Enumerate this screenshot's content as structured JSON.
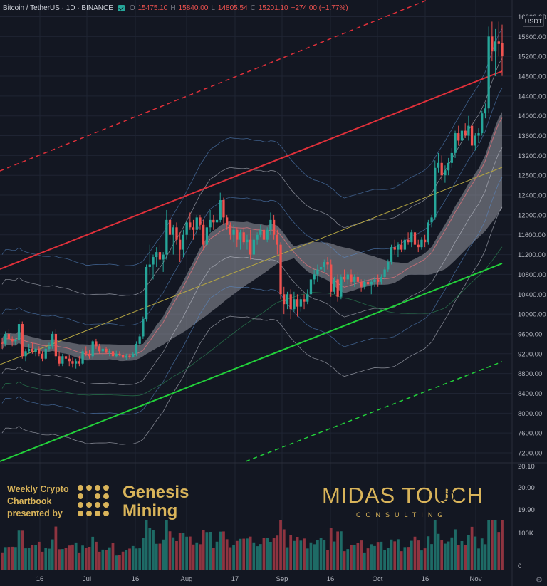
{
  "header": {
    "symbol": "Bitcoin / TetherUS · 1D · BINANCE",
    "open_label": "O",
    "open": "15475.10",
    "high_label": "H",
    "high": "15840.00",
    "low_label": "L",
    "low": "14805.54",
    "close_label": "C",
    "close": "15201.10",
    "change": "−274.00 (−1.77%)"
  },
  "currency": "USDT",
  "colors": {
    "bg": "#131722",
    "up": "#26a69a",
    "down": "#ef5350",
    "vol_up": "#1e6b66",
    "vol_down": "#8e3440",
    "gold": "#d9b45a",
    "grid": "#1f2433"
  },
  "promo": {
    "lines": [
      "Weekly Crypto",
      "Chartbook",
      "presented by"
    ],
    "brand_line1": "Genesis",
    "brand_line2": "Mining"
  },
  "midas": {
    "title": "MIDAS TOUCH",
    "subtitle": "CONSULTING"
  },
  "chart_data": {
    "type": "candlestick",
    "y_axis_labels": [
      "16000.00",
      "15600.00",
      "15200.00",
      "14800.00",
      "14400.00",
      "14000.00",
      "13600.00",
      "13200.00",
      "12800.00",
      "12400.00",
      "12000.00",
      "11600.00",
      "11200.00",
      "10800.00",
      "10400.00",
      "10000.00",
      "9600.00",
      "9200.00",
      "8800.00",
      "8400.00",
      "8000.00",
      "7600.00",
      "7200.00"
    ],
    "ylim": [
      7000,
      16050
    ],
    "x_axis_labels": [
      "16",
      "Jul",
      "16",
      "Aug",
      "17",
      "Sep",
      "16",
      "Oct",
      "16",
      "Nov"
    ],
    "volume_axis_labels": [
      "20.10",
      "20.00",
      "19.90",
      "100K",
      "0"
    ],
    "candles": [
      [
        9420,
        9520,
        9300,
        9400
      ],
      [
        9400,
        9650,
        9350,
        9600
      ],
      [
        9600,
        9700,
        9450,
        9500
      ],
      [
        9500,
        9550,
        9350,
        9450
      ],
      [
        9450,
        9520,
        9380,
        9480
      ],
      [
        9480,
        9900,
        9400,
        9800
      ],
      [
        9800,
        9850,
        9100,
        9150
      ],
      [
        9150,
        9300,
        9050,
        9250
      ],
      [
        9250,
        9400,
        9200,
        9300
      ],
      [
        9300,
        9420,
        9200,
        9230
      ],
      [
        9230,
        9320,
        9150,
        9300
      ],
      [
        9300,
        9350,
        9150,
        9200
      ],
      [
        9200,
        9250,
        9050,
        9100
      ],
      [
        9100,
        9320,
        9080,
        9300
      ],
      [
        9300,
        9420,
        9250,
        9350
      ],
      [
        9350,
        9650,
        9300,
        9600
      ],
      [
        9600,
        9700,
        9080,
        9150
      ],
      [
        9150,
        9250,
        8950,
        9000
      ],
      [
        9000,
        9200,
        8950,
        9150
      ],
      [
        9150,
        9280,
        9050,
        9100
      ],
      [
        9100,
        9180,
        8950,
        9050
      ],
      [
        9050,
        9120,
        8920,
        9000
      ],
      [
        9000,
        9100,
        8900,
        9050
      ],
      [
        9050,
        9150,
        8950,
        9000
      ],
      [
        9000,
        9300,
        8980,
        9250
      ],
      [
        9250,
        9350,
        9150,
        9200
      ],
      [
        9200,
        9280,
        9100,
        9150
      ],
      [
        9150,
        9480,
        9100,
        9450
      ],
      [
        9450,
        9500,
        9300,
        9350
      ],
      [
        9350,
        9400,
        9200,
        9250
      ],
      [
        9250,
        9350,
        9150,
        9300
      ],
      [
        9300,
        9330,
        9200,
        9220
      ],
      [
        9220,
        9300,
        9150,
        9250
      ],
      [
        9250,
        9300,
        9100,
        9150
      ],
      [
        9150,
        9260,
        9120,
        9200
      ],
      [
        9200,
        9250,
        9150,
        9180
      ],
      [
        9180,
        9230,
        9100,
        9120
      ],
      [
        9120,
        9200,
        9080,
        9160
      ],
      [
        9160,
        9200,
        9100,
        9140
      ],
      [
        9140,
        9230,
        9120,
        9200
      ],
      [
        9200,
        9450,
        9150,
        9400
      ],
      [
        9400,
        9600,
        9350,
        9550
      ],
      [
        9550,
        9950,
        9500,
        9900
      ],
      [
        9900,
        11000,
        9850,
        10950
      ],
      [
        10950,
        11400,
        10800,
        11000
      ],
      [
        11000,
        11200,
        10700,
        11150
      ],
      [
        11150,
        11350,
        10950,
        11250
      ],
      [
        11250,
        11400,
        11050,
        11100
      ],
      [
        11100,
        11250,
        10850,
        11200
      ],
      [
        11200,
        12100,
        11100,
        11900
      ],
      [
        11900,
        12000,
        11500,
        11600
      ],
      [
        11600,
        11800,
        11200,
        11750
      ],
      [
        11750,
        11850,
        11400,
        11500
      ],
      [
        11500,
        11650,
        11050,
        11300
      ],
      [
        11300,
        11700,
        11150,
        11600
      ],
      [
        11600,
        11900,
        11500,
        11850
      ],
      [
        11850,
        12050,
        11700,
        11750
      ],
      [
        11750,
        11900,
        11500,
        11700
      ],
      [
        11700,
        12000,
        11600,
        11950
      ],
      [
        11950,
        12000,
        11700,
        11800
      ],
      [
        11800,
        11900,
        11300,
        11400
      ],
      [
        11400,
        11800,
        11300,
        11750
      ],
      [
        11750,
        12100,
        11650,
        11900
      ],
      [
        11900,
        12000,
        11700,
        11850
      ],
      [
        11850,
        12000,
        11600,
        11900
      ],
      [
        11900,
        12450,
        11850,
        12300
      ],
      [
        12300,
        12350,
        11800,
        11950
      ],
      [
        11950,
        12000,
        11700,
        11800
      ],
      [
        11800,
        11850,
        11500,
        11600
      ],
      [
        11600,
        11800,
        11450,
        11700
      ],
      [
        11700,
        11750,
        11350,
        11500
      ],
      [
        11500,
        11700,
        11300,
        11650
      ],
      [
        11650,
        11750,
        11400,
        11450
      ],
      [
        11450,
        11600,
        11300,
        11500
      ],
      [
        11500,
        11700,
        11100,
        11200
      ],
      [
        11200,
        11550,
        11150,
        11500
      ],
      [
        11500,
        11650,
        11400,
        11600
      ],
      [
        11600,
        11800,
        11550,
        11700
      ],
      [
        11700,
        11750,
        11400,
        11500
      ],
      [
        11500,
        11750,
        11450,
        11700
      ],
      [
        11700,
        12050,
        11600,
        11900
      ],
      [
        11900,
        12000,
        11500,
        11600
      ],
      [
        11600,
        11700,
        11200,
        11400
      ],
      [
        11400,
        11450,
        10300,
        10400
      ],
      [
        10400,
        10550,
        10000,
        10200
      ],
      [
        10200,
        10450,
        10100,
        10400
      ],
      [
        10400,
        10500,
        9900,
        10100
      ],
      [
        10100,
        10450,
        10050,
        10300
      ],
      [
        10300,
        10400,
        9950,
        10150
      ],
      [
        10150,
        10350,
        10050,
        10300
      ],
      [
        10300,
        10400,
        10100,
        10250
      ],
      [
        10250,
        10500,
        10200,
        10400
      ],
      [
        10400,
        10750,
        10350,
        10700
      ],
      [
        10700,
        10900,
        10600,
        10800
      ],
      [
        10800,
        11000,
        10650,
        10900
      ],
      [
        10900,
        11050,
        10700,
        10950
      ],
      [
        10950,
        11100,
        10850,
        11050
      ],
      [
        11050,
        11150,
        10900,
        11000
      ],
      [
        11000,
        11100,
        10350,
        10450
      ],
      [
        10450,
        10750,
        10400,
        10700
      ],
      [
        10700,
        10800,
        10250,
        10350
      ],
      [
        10350,
        10800,
        10300,
        10750
      ],
      [
        10750,
        10900,
        10650,
        10700
      ],
      [
        10700,
        10850,
        10600,
        10800
      ],
      [
        10800,
        10900,
        10600,
        10650
      ],
      [
        10650,
        10800,
        10550,
        10750
      ],
      [
        10750,
        10850,
        10600,
        10650
      ],
      [
        10650,
        10700,
        10450,
        10550
      ],
      [
        10550,
        10700,
        10500,
        10650
      ],
      [
        10650,
        10750,
        10500,
        10600
      ],
      [
        10600,
        10700,
        10400,
        10650
      ],
      [
        10650,
        10750,
        10550,
        10700
      ],
      [
        10700,
        10800,
        10550,
        10650
      ],
      [
        10650,
        10800,
        10600,
        10750
      ],
      [
        10750,
        10950,
        10700,
        10900
      ],
      [
        10900,
        11100,
        10850,
        11050
      ],
      [
        11050,
        11400,
        11000,
        11350
      ],
      [
        11350,
        11500,
        11200,
        11300
      ],
      [
        11300,
        11450,
        11150,
        11400
      ],
      [
        11400,
        11500,
        11250,
        11300
      ],
      [
        11300,
        11550,
        11250,
        11500
      ],
      [
        11500,
        11650,
        11400,
        11450
      ],
      [
        11450,
        11700,
        11350,
        11650
      ],
      [
        11650,
        11700,
        11300,
        11400
      ],
      [
        11400,
        11500,
        11250,
        11350
      ],
      [
        11350,
        11550,
        11300,
        11500
      ],
      [
        11500,
        11600,
        11350,
        11450
      ],
      [
        11450,
        11900,
        11400,
        11850
      ],
      [
        11850,
        12000,
        11750,
        11950
      ],
      [
        11950,
        13100,
        11900,
        12950
      ],
      [
        12950,
        13250,
        12850,
        13050
      ],
      [
        13050,
        13200,
        12700,
        12800
      ],
      [
        12800,
        13000,
        12650,
        12900
      ],
      [
        12900,
        13150,
        12800,
        13050
      ],
      [
        13050,
        13350,
        12950,
        13250
      ],
      [
        13250,
        13700,
        13150,
        13650
      ],
      [
        13650,
        13800,
        13400,
        13500
      ],
      [
        13500,
        13750,
        13300,
        13700
      ],
      [
        13700,
        13850,
        13550,
        13600
      ],
      [
        13600,
        14000,
        13500,
        13800
      ],
      [
        13800,
        13900,
        13250,
        13400
      ],
      [
        13400,
        13650,
        13300,
        13600
      ],
      [
        13600,
        13750,
        13450,
        13650
      ],
      [
        13650,
        14100,
        13600,
        14050
      ],
      [
        14050,
        14250,
        13950,
        14150
      ],
      [
        14150,
        15800,
        14050,
        15600
      ],
      [
        15600,
        15900,
        15100,
        15300
      ],
      [
        15300,
        15750,
        14800,
        15500
      ],
      [
        15500,
        15900,
        15200,
        15450
      ],
      [
        15475,
        15840,
        14805,
        15201
      ]
    ]
  }
}
